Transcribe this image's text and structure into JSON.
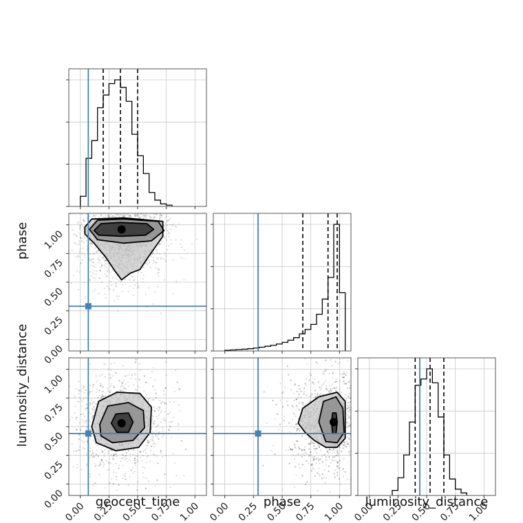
{
  "chart_data": {
    "type": "corner",
    "parameters": [
      "geocent_time",
      "phase",
      "luminosity_distance"
    ],
    "axis_labels": {
      "x": [
        "geocent_time",
        "phase",
        "luminosity_distance"
      ],
      "y": [
        "",
        "phase",
        "luminosity_distance"
      ]
    },
    "range": [
      -0.1,
      1.1
    ],
    "ticks": [
      0.0,
      0.25,
      0.5,
      0.75,
      1.0
    ],
    "tick_labels": [
      "0.00",
      "0.25",
      "0.50",
      "0.75",
      "1.00"
    ],
    "grid": true,
    "injection": {
      "geocent_time": 0.07,
      "phase": 0.29,
      "luminosity_distance": 0.44
    },
    "quantiles": {
      "geocent_time": [
        0.2,
        0.35,
        0.5
      ],
      "phase": [
        0.68,
        0.9,
        0.98
      ],
      "luminosity_distance": [
        0.4,
        0.53,
        0.65
      ]
    },
    "histograms": {
      "geocent_time": {
        "bin_edges": [
          0.0,
          0.05,
          0.1,
          0.15,
          0.2,
          0.25,
          0.3,
          0.35,
          0.4,
          0.45,
          0.5,
          0.55,
          0.6,
          0.65,
          0.7,
          0.75,
          0.8
        ],
        "counts": [
          0.08,
          0.38,
          0.52,
          0.78,
          0.88,
          0.97,
          1.0,
          0.94,
          0.83,
          0.57,
          0.4,
          0.26,
          0.11,
          0.05,
          0.02,
          0.01
        ]
      },
      "phase": {
        "bin_edges": [
          0.0,
          0.05,
          0.1,
          0.15,
          0.2,
          0.25,
          0.3,
          0.35,
          0.4,
          0.45,
          0.5,
          0.55,
          0.6,
          0.65,
          0.7,
          0.75,
          0.8,
          0.85,
          0.9,
          0.95,
          1.0,
          1.05
        ],
        "counts": [
          0.005,
          0.008,
          0.011,
          0.014,
          0.018,
          0.023,
          0.03,
          0.037,
          0.045,
          0.055,
          0.068,
          0.085,
          0.105,
          0.135,
          0.17,
          0.21,
          0.29,
          0.41,
          0.58,
          1.0,
          0.46
        ]
      },
      "luminosity_distance": {
        "bin_edges": [
          0.2,
          0.25,
          0.3,
          0.35,
          0.4,
          0.45,
          0.5,
          0.55,
          0.6,
          0.65,
          0.7,
          0.75,
          0.8,
          0.85
        ],
        "counts": [
          0.04,
          0.14,
          0.32,
          0.58,
          0.87,
          0.92,
          1.0,
          0.89,
          0.62,
          0.32,
          0.13,
          0.05,
          0.02
        ]
      }
    },
    "density_2d": [
      {
        "x": "geocent_time",
        "y": "phase",
        "peak": [
          0.36,
          0.96
        ],
        "contours": [
          [
            [
              0.12,
              0.95
            ],
            [
              0.18,
              1.01
            ],
            [
              0.35,
              1.02
            ],
            [
              0.58,
              1.01
            ],
            [
              0.64,
              0.96
            ],
            [
              0.57,
              0.91
            ],
            [
              0.36,
              0.9
            ],
            [
              0.16,
              0.91
            ]
          ],
          [
            [
              0.08,
              0.96
            ],
            [
              0.15,
              1.04
            ],
            [
              0.38,
              1.05
            ],
            [
              0.68,
              1.03
            ],
            [
              0.73,
              0.95
            ],
            [
              0.62,
              0.86
            ],
            [
              0.38,
              0.84
            ],
            [
              0.15,
              0.87
            ]
          ],
          [
            [
              0.04,
              0.98
            ],
            [
              0.1,
              1.05
            ],
            [
              0.38,
              1.06
            ],
            [
              0.72,
              1.03
            ],
            [
              0.72,
              0.9
            ],
            [
              0.6,
              0.73
            ],
            [
              0.52,
              0.61
            ],
            [
              0.44,
              0.58
            ],
            [
              0.36,
              0.52
            ],
            [
              0.3,
              0.6
            ],
            [
              0.22,
              0.72
            ],
            [
              0.12,
              0.84
            ],
            [
              0.04,
              0.92
            ]
          ]
        ]
      },
      {
        "x": "geocent_time",
        "y": "luminosity_distance",
        "peak": [
          0.36,
          0.53
        ],
        "contours": [
          [
            [
              0.27,
              0.53
            ],
            [
              0.31,
              0.61
            ],
            [
              0.42,
              0.62
            ],
            [
              0.46,
              0.54
            ],
            [
              0.42,
              0.45
            ],
            [
              0.32,
              0.45
            ]
          ],
          [
            [
              0.17,
              0.52
            ],
            [
              0.24,
              0.68
            ],
            [
              0.42,
              0.71
            ],
            [
              0.55,
              0.64
            ],
            [
              0.56,
              0.49
            ],
            [
              0.46,
              0.38
            ],
            [
              0.28,
              0.36
            ],
            [
              0.18,
              0.42
            ]
          ],
          [
            [
              0.1,
              0.5
            ],
            [
              0.16,
              0.72
            ],
            [
              0.32,
              0.8
            ],
            [
              0.52,
              0.79
            ],
            [
              0.62,
              0.67
            ],
            [
              0.61,
              0.45
            ],
            [
              0.51,
              0.32
            ],
            [
              0.31,
              0.29
            ],
            [
              0.14,
              0.36
            ]
          ]
        ]
      },
      {
        "x": "phase",
        "y": "luminosity_distance",
        "peak": [
          0.95,
          0.54
        ],
        "contours": [
          [
            [
              0.93,
              0.54
            ],
            [
              0.94,
              0.62
            ],
            [
              0.97,
              0.62
            ],
            [
              0.98,
              0.54
            ],
            [
              0.97,
              0.44
            ],
            [
              0.94,
              0.44
            ]
          ],
          [
            [
              0.82,
              0.54
            ],
            [
              0.86,
              0.72
            ],
            [
              0.97,
              0.76
            ],
            [
              1.03,
              0.66
            ],
            [
              1.04,
              0.45
            ],
            [
              0.98,
              0.36
            ],
            [
              0.88,
              0.37
            ]
          ],
          [
            [
              0.64,
              0.53
            ],
            [
              0.68,
              0.66
            ],
            [
              0.82,
              0.76
            ],
            [
              0.98,
              0.8
            ],
            [
              1.05,
              0.72
            ],
            [
              1.05,
              0.4
            ],
            [
              0.98,
              0.32
            ],
            [
              0.88,
              0.32
            ],
            [
              0.78,
              0.38
            ],
            [
              0.7,
              0.45
            ]
          ]
        ]
      }
    ]
  }
}
